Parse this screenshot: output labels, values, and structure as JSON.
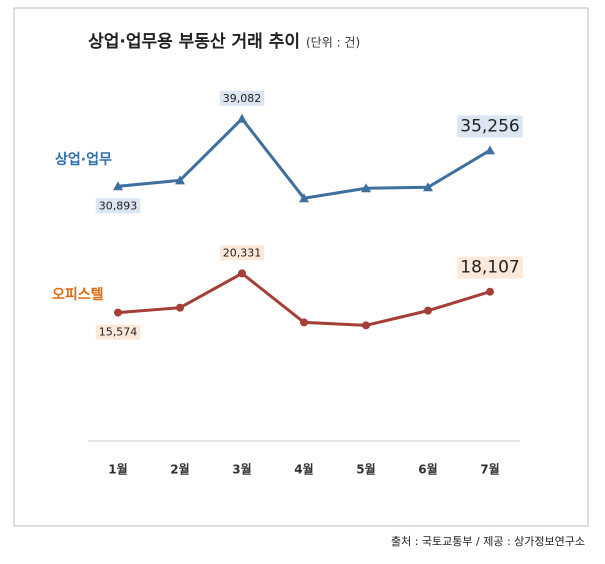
{
  "chart_data": {
    "type": "line",
    "title": "상업·업무용 부동산 거래 추이",
    "subtitle": "(단위 : 건)",
    "source": "출처 : 국토교통부 / 제공 : 상가정보연구소",
    "categories": [
      "1월",
      "2월",
      "3월",
      "4월",
      "5월",
      "6월",
      "7월"
    ],
    "ylim": [
      0,
      45000
    ],
    "series": [
      {
        "name": "상업·업무",
        "color": "#3f6f9f",
        "label_bg": "#dce6f2",
        "values": [
          30893,
          31615,
          39082,
          29448,
          30652,
          30773,
          35256
        ],
        "value_labels": [
          "30,893",
          null,
          "39,082",
          null,
          null,
          null,
          "35,256"
        ]
      },
      {
        "name": "오피스텔",
        "color": "#a33f36",
        "label_bg": "#fde9d9",
        "values": [
          15574,
          16169,
          20331,
          14384,
          14027,
          15812,
          18107
        ],
        "value_labels": [
          "15,574",
          null,
          "20,331",
          null,
          null,
          null,
          "18,107"
        ]
      }
    ]
  }
}
